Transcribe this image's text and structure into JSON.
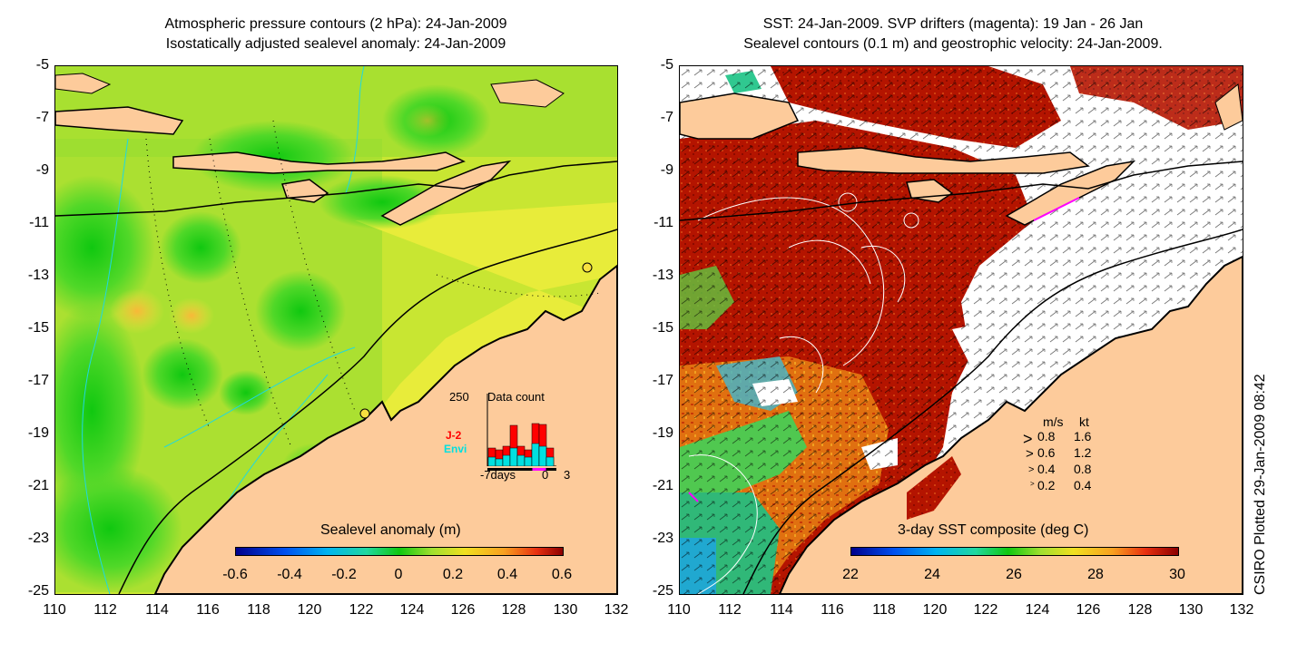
{
  "left_panel": {
    "title_line1": "Atmospheric pressure contours (2 hPa): 24-Jan-2009",
    "title_line2": "Isostatically adjusted sealevel anomaly: 24-Jan-2009",
    "colorbar_title": "Sealevel anomaly (m)",
    "colorbar_ticks": [
      "-0.6",
      "-0.4",
      "-0.2",
      "0",
      "0.2",
      "0.4",
      "0.6"
    ],
    "inset": {
      "max_label": "250",
      "title": "Data count",
      "series_labels": [
        "J-2",
        "Envi"
      ],
      "series_colors": [
        "#ff0000",
        "#00e0e0"
      ],
      "x_labels": [
        "-7days",
        "0",
        "3"
      ]
    }
  },
  "right_panel": {
    "title_line1": "SST: 24-Jan-2009. SVP drifters (magenta): 19 Jan - 26 Jan",
    "title_line2": "Sealevel contours (0.1 m) and geostrophic velocity: 24-Jan-2009.",
    "colorbar_title": "3-day SST composite (deg C)",
    "colorbar_ticks": [
      "22",
      "24",
      "26",
      "28",
      "30"
    ],
    "velocity_legend": {
      "header_ms": "m/s",
      "header_kt": "kt",
      "rows": [
        {
          "ms": "0.8",
          "kt": "1.6"
        },
        {
          "ms": "0.6",
          "kt": "1.2"
        },
        {
          "ms": "0.4",
          "kt": "0.8"
        },
        {
          "ms": "0.2",
          "kt": "0.4"
        }
      ]
    }
  },
  "axes": {
    "y_labels": [
      "-5",
      "-7",
      "-9",
      "-11",
      "-13",
      "-15",
      "-17",
      "-19",
      "-21",
      "-23",
      "-25"
    ],
    "x_labels": [
      "110",
      "112",
      "114",
      "116",
      "118",
      "120",
      "122",
      "124",
      "126",
      "128",
      "130",
      "132"
    ],
    "lon_range": [
      110,
      132
    ],
    "lat_range": [
      -25,
      -5
    ]
  },
  "credit": "CSIRO Plotted 29-Jan-2009 08:42",
  "colors": {
    "land": "#fdcb9b",
    "sea_level_base": "#c8e632",
    "sst_warm": "#b41400",
    "contour_cyan": "#20d8e0"
  }
}
